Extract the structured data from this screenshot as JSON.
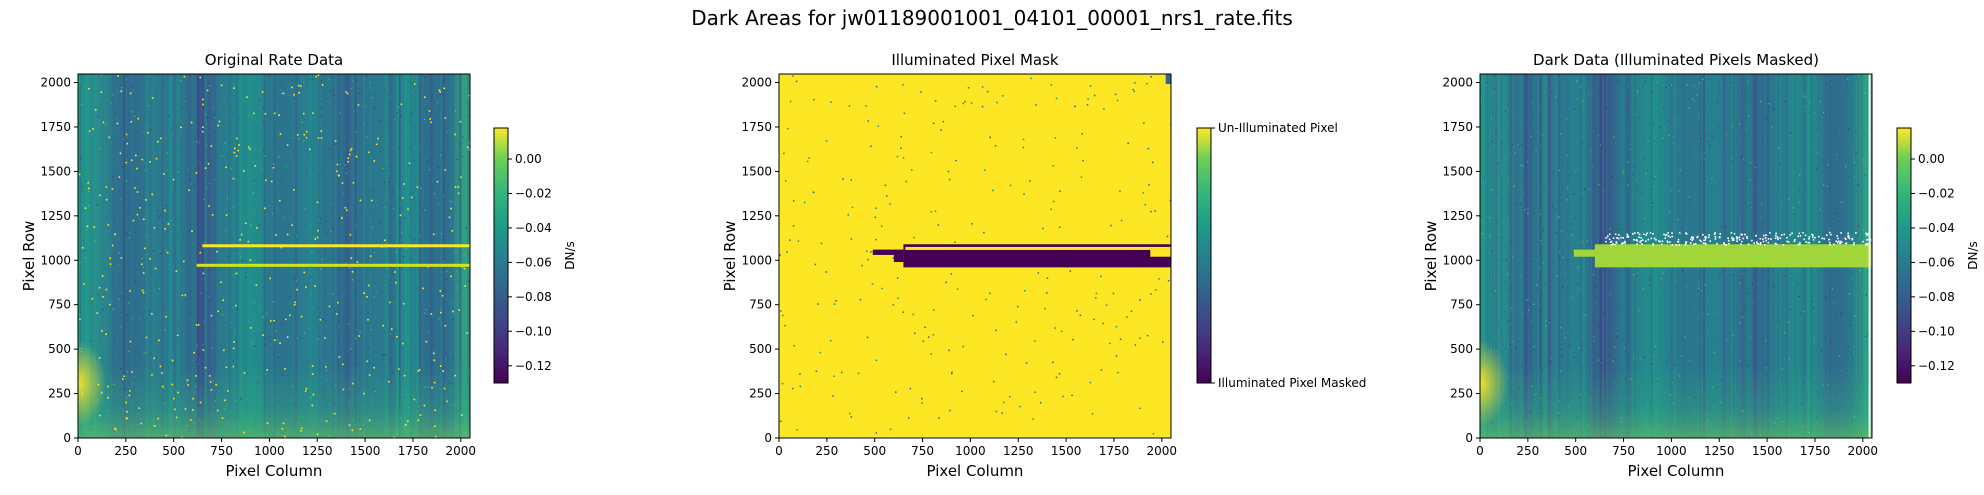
{
  "suptitle": "Dark Areas for jw01189001001_04101_00001_nrs1_rate.fits",
  "colors": {
    "viridis_dark": "#440154",
    "viridis_mid": "#21918c",
    "viridis_bright": "#fde725",
    "band_fill": "#a0d63a"
  },
  "chart_data": [
    {
      "type": "heatmap",
      "title": "Original Rate Data",
      "xlabel": "Pixel Column",
      "ylabel": "Pixel Row",
      "xlim": [
        0,
        2048
      ],
      "ylim": [
        0,
        2048
      ],
      "xticks": [
        0,
        250,
        500,
        750,
        1000,
        1250,
        1500,
        1750,
        2000
      ],
      "yticks": [
        0,
        250,
        500,
        750,
        1000,
        1250,
        1500,
        1750,
        2000
      ],
      "colormap": "viridis",
      "colorbar": {
        "label": "DN/s",
        "range": [
          -0.13,
          0.018
        ],
        "ticks": [
          0.0,
          -0.02,
          -0.04,
          -0.06,
          -0.08,
          -0.1,
          -0.12
        ],
        "tick_labels": [
          "0.00",
          "−0.02",
          "−0.04",
          "−0.06",
          "−0.08",
          "−0.10",
          "−0.12"
        ]
      }
    },
    {
      "type": "heatmap",
      "title": "Illuminated Pixel Mask",
      "xlabel": "Pixel Column",
      "ylabel": "Pixel Row",
      "xlim": [
        0,
        2048
      ],
      "ylim": [
        0,
        2048
      ],
      "xticks": [
        0,
        250,
        500,
        750,
        1000,
        1250,
        1500,
        1750,
        2000
      ],
      "yticks": [
        0,
        250,
        500,
        750,
        1000,
        1250,
        1500,
        1750,
        2000
      ],
      "colormap": "viridis",
      "colorbar": {
        "label": "",
        "range": [
          0,
          1
        ],
        "ticks": [
          1,
          0
        ],
        "tick_labels": [
          "Un-Illuminated Pixel",
          "Illuminated Pixel Masked"
        ]
      },
      "masked_region": {
        "step_start_x": 490,
        "step_rows": [
          1030,
          1060
        ],
        "main_x": [
          650,
          2048
        ],
        "main_rows": [
          960,
          1090
        ]
      }
    },
    {
      "type": "heatmap",
      "title": "Dark Data (Illuminated Pixels Masked)",
      "xlabel": "Pixel Column",
      "ylabel": "Pixel Row",
      "xlim": [
        0,
        2048
      ],
      "ylim": [
        0,
        2048
      ],
      "xticks": [
        0,
        250,
        500,
        750,
        1000,
        1250,
        1500,
        1750,
        2000
      ],
      "yticks": [
        0,
        250,
        500,
        750,
        1000,
        1250,
        1500,
        1750,
        2000
      ],
      "colormap": "viridis",
      "colorbar": {
        "label": "DN/s",
        "range": [
          -0.13,
          0.018
        ],
        "ticks": [
          0.0,
          -0.02,
          -0.04,
          -0.06,
          -0.08,
          -0.1,
          -0.12
        ],
        "tick_labels": [
          "0.00",
          "−0.02",
          "−0.04",
          "−0.06",
          "−0.08",
          "−0.10",
          "−0.12"
        ]
      }
    }
  ]
}
